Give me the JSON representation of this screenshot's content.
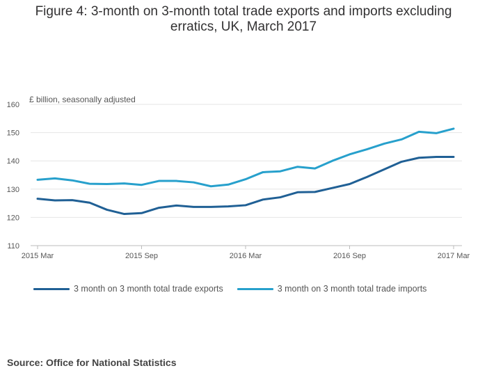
{
  "chart_data": {
    "type": "line",
    "title": "Figure 4: 3-month on 3-month total trade exports and imports excluding erratics, UK, March 2017",
    "ylabel": "£ billion, seasonally adjusted",
    "xlabel": "",
    "ylim": [
      110,
      160
    ],
    "yticks": [
      110,
      120,
      130,
      140,
      150,
      160
    ],
    "xtick_labels": [
      "2015 Mar",
      "2015 Sep",
      "2016 Mar",
      "2016 Sep",
      "2017 Mar"
    ],
    "xtick_indices": [
      0,
      6,
      12,
      18,
      24
    ],
    "categories": [
      "2015 Mar",
      "2015 Apr",
      "2015 May",
      "2015 Jun",
      "2015 Jul",
      "2015 Aug",
      "2015 Sep",
      "2015 Oct",
      "2015 Nov",
      "2015 Dec",
      "2016 Jan",
      "2016 Feb",
      "2016 Mar",
      "2016 Apr",
      "2016 May",
      "2016 Jun",
      "2016 Jul",
      "2016 Aug",
      "2016 Sep",
      "2016 Oct",
      "2016 Nov",
      "2016 Dec",
      "2017 Jan",
      "2017 Feb",
      "2017 Mar"
    ],
    "series": [
      {
        "name": "3 month on 3 month total trade exports",
        "color": "#206095",
        "values": [
          126.6,
          126.0,
          126.1,
          125.2,
          122.7,
          121.2,
          121.5,
          123.4,
          124.2,
          123.7,
          123.7,
          123.9,
          124.3,
          126.3,
          127.1,
          128.9,
          129.0,
          130.4,
          131.8,
          134.3,
          137.0,
          139.7,
          141.1,
          141.4,
          141.4
        ]
      },
      {
        "name": "3 month on 3 month total trade imports",
        "color": "#27a0cc",
        "values": [
          133.3,
          133.8,
          133.1,
          131.9,
          131.8,
          132.0,
          131.5,
          132.9,
          132.9,
          132.4,
          131.0,
          131.6,
          133.5,
          136.0,
          136.3,
          137.9,
          137.3,
          140.0,
          142.3,
          144.1,
          146.1,
          147.6,
          150.3,
          149.8,
          151.4
        ]
      }
    ]
  },
  "source": "Source: Office for National Statistics"
}
